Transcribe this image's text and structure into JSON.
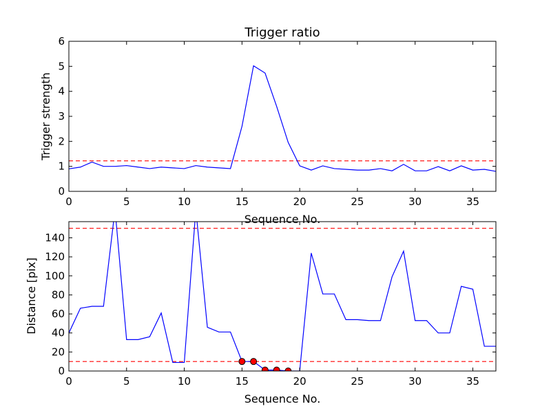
{
  "chart_data": [
    {
      "type": "line",
      "title": "Trigger ratio",
      "xlabel": "Sequence No.",
      "ylabel": "Trigger strength",
      "xlim": [
        0,
        37
      ],
      "ylim": [
        0,
        6
      ],
      "x_ticks": [
        0,
        5,
        10,
        15,
        20,
        25,
        30,
        35
      ],
      "y_ticks": [
        0,
        1,
        2,
        3,
        4,
        5,
        6
      ],
      "grid": false,
      "line_color": "#0000ff",
      "threshold_color": "#ff0000",
      "thresholds": [
        1.22
      ],
      "series": [
        {
          "x": [
            0,
            1,
            2,
            3,
            4,
            5,
            6,
            7,
            8,
            9,
            10,
            11,
            12,
            13,
            14,
            15,
            16,
            17,
            18,
            19,
            20,
            21,
            22,
            23,
            24,
            25,
            26,
            27,
            28,
            29,
            30,
            31,
            32,
            33,
            34,
            35,
            36,
            37
          ],
          "y": [
            0.9,
            0.97,
            1.17,
            1.0,
            1.0,
            1.03,
            0.97,
            0.91,
            0.97,
            0.94,
            0.91,
            1.03,
            0.97,
            0.94,
            0.91,
            2.6,
            5.02,
            4.73,
            3.4,
            1.96,
            1.02,
            0.85,
            1.02,
            0.91,
            0.88,
            0.85,
            0.85,
            0.91,
            0.82,
            1.08,
            0.82,
            0.82,
            0.99,
            0.82,
            1.02,
            0.85,
            0.88,
            0.8
          ]
        }
      ]
    },
    {
      "type": "line",
      "title": "",
      "xlabel": "Sequence No.",
      "ylabel": "Distance [pix]",
      "xlim": [
        0,
        37
      ],
      "ylim": [
        0,
        157
      ],
      "x_ticks": [
        0,
        5,
        10,
        15,
        20,
        25,
        30,
        35
      ],
      "y_ticks": [
        0,
        20,
        40,
        60,
        80,
        100,
        120,
        140
      ],
      "grid": false,
      "line_color": "#0000ff",
      "threshold_color": "#ff0000",
      "marker_color": "#ff0000",
      "thresholds": [
        10,
        150
      ],
      "series": [
        {
          "x": [
            0,
            1,
            2,
            3,
            4,
            5,
            6,
            7,
            8,
            9,
            10,
            11,
            12,
            13,
            14,
            15,
            16,
            17,
            18,
            19,
            20,
            21,
            22,
            23,
            24,
            25,
            26,
            27,
            28,
            29,
            30,
            31,
            32,
            33,
            34,
            35,
            36,
            37
          ],
          "y": [
            40,
            66,
            68,
            68,
            170,
            33,
            33,
            36,
            61,
            9,
            9,
            170,
            46,
            41,
            41,
            10,
            10,
            1,
            1,
            0,
            0,
            124,
            81,
            81,
            54,
            54,
            53,
            53,
            99,
            126,
            53,
            53,
            40,
            40,
            89,
            86,
            26,
            26
          ]
        }
      ],
      "markers": [
        {
          "x": 15,
          "y": 10
        },
        {
          "x": 16,
          "y": 10
        },
        {
          "x": 17,
          "y": 1
        },
        {
          "x": 18,
          "y": 1
        },
        {
          "x": 19,
          "y": 0
        }
      ]
    }
  ]
}
